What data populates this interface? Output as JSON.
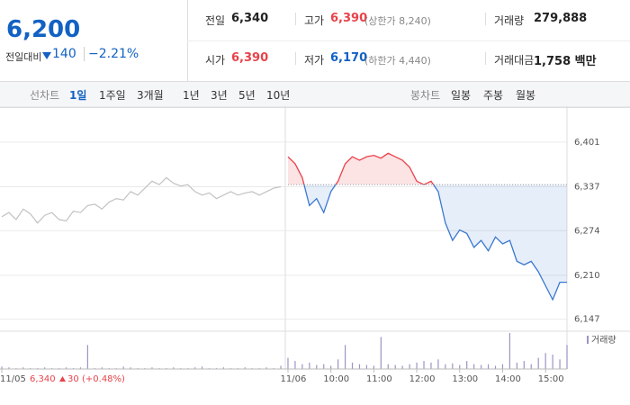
{
  "header": {
    "price": "6,200",
    "change_label": "전일대비",
    "change": "140",
    "rate": "−2.21%",
    "rows": [
      [
        [
          "전일",
          "6,340"
        ],
        [
          "고가",
          "6,390",
          "(상한가 8,240)"
        ],
        [
          "거래량",
          "279,888"
        ]
      ],
      [
        [
          "시가",
          "6,390"
        ],
        [
          "저가",
          "6,170",
          "(하한가 4,440)"
        ],
        [
          "거래대금",
          "1,758 백만"
        ]
      ]
    ]
  },
  "tabs": {
    "line_label": "선차트",
    "line_periods": [
      "1일",
      "1주일",
      "3개월",
      "1년",
      "3년",
      "5년",
      "10년"
    ],
    "candle_label": "봉차트",
    "candle_periods": [
      "일봉",
      "주봉",
      "월봉"
    ]
  },
  "chart_data": {
    "type": "line",
    "categories": [
      "11/05",
      null,
      null,
      null,
      null,
      null,
      null,
      null,
      null,
      null,
      null,
      null,
      null,
      null,
      null,
      null,
      null,
      null,
      null,
      null,
      null,
      null,
      null,
      null,
      null,
      null,
      null,
      null,
      null,
      null,
      null,
      null,
      null,
      null,
      null,
      null,
      null,
      null,
      null,
      null,
      "11/06",
      null,
      null,
      null,
      null,
      null,
      "10:00",
      null,
      null,
      null,
      null,
      null,
      "11:00",
      null,
      null,
      null,
      null,
      null,
      "12:00",
      null,
      null,
      null,
      null,
      null,
      "13:00",
      null,
      null,
      null,
      null,
      null,
      "14:00",
      null,
      null,
      null,
      null,
      null,
      "15:00",
      null,
      null,
      null
    ],
    "series": [
      {
        "color": "#c2c2c2",
        "values": [
          6294,
          6300,
          6290,
          6305,
          6298,
          6285,
          6296,
          6300,
          6290,
          6288,
          6302,
          6300,
          6310,
          6312,
          6305,
          6315,
          6320,
          6318,
          6330,
          6325,
          6335,
          6345,
          6340,
          6350,
          6342,
          6338,
          6340,
          6330,
          6325,
          6328,
          6320,
          6325,
          6330,
          6325,
          6328,
          6330,
          6325,
          6330,
          6335,
          6337,
          null,
          null,
          null,
          null,
          null,
          null,
          null,
          null,
          null,
          null,
          null,
          null,
          null,
          null,
          null,
          null,
          null,
          null,
          null,
          null,
          null,
          null,
          null,
          null,
          null,
          null,
          null,
          null,
          null,
          null,
          null,
          null,
          null,
          null,
          null,
          null,
          null,
          null,
          null,
          null
        ]
      },
      {
        "color": "#3a78d0",
        "up_color": "#e8434b",
        "values": [
          null,
          null,
          null,
          null,
          null,
          null,
          null,
          null,
          null,
          null,
          null,
          null,
          null,
          null,
          null,
          null,
          null,
          null,
          null,
          null,
          null,
          null,
          null,
          null,
          null,
          null,
          null,
          null,
          null,
          null,
          null,
          null,
          null,
          null,
          null,
          null,
          null,
          null,
          null,
          null,
          6380,
          6370,
          6350,
          6310,
          6320,
          6300,
          6330,
          6345,
          6370,
          6380,
          6375,
          6380,
          6382,
          6378,
          6385,
          6380,
          6375,
          6365,
          6345,
          6340,
          6345,
          6330,
          6285,
          6260,
          6275,
          6270,
          6250,
          6260,
          6245,
          6265,
          6255,
          6260,
          6230,
          6225,
          6230,
          6215,
          6195,
          6175,
          6200,
          6200
        ]
      }
    ],
    "baseline": 6340,
    "volume_label": "거래량",
    "volume_color": "#9d93c4",
    "volume": [
      3,
      2,
      1,
      2,
      1,
      1,
      2,
      1,
      1,
      2,
      1,
      2,
      30,
      1,
      2,
      1,
      1,
      3,
      2,
      1,
      1,
      2,
      1,
      1,
      2,
      1,
      1,
      2,
      3,
      1,
      1,
      2,
      1,
      1,
      2,
      1,
      1,
      2,
      1,
      4,
      14,
      10,
      6,
      8,
      5,
      6,
      4,
      12,
      30,
      8,
      6,
      5,
      4,
      40,
      6,
      5,
      4,
      6,
      8,
      10,
      8,
      12,
      6,
      7,
      5,
      10,
      6,
      5,
      6,
      4,
      6,
      45,
      8,
      10,
      6,
      14,
      20,
      18,
      12,
      30
    ],
    "ylim": [
      6135,
      6437
    ],
    "yticks": [
      {
        "value": 6401,
        "label": "6,401"
      },
      {
        "value": 6337,
        "label": "6,337"
      },
      {
        "value": 6274,
        "label": "6,274"
      },
      {
        "value": 6210,
        "label": "6,210"
      },
      {
        "value": 6147,
        "label": "6,147"
      }
    ],
    "grid": true,
    "info": {
      "price": "6,340",
      "change": "30",
      "rate": "(+0.48%)"
    }
  }
}
